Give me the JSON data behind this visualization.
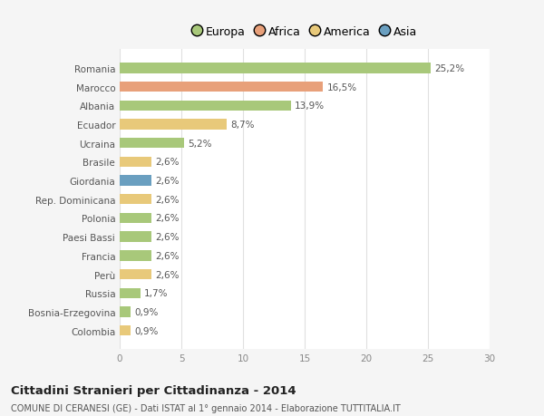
{
  "categories": [
    "Colombia",
    "Bosnia-Erzegovina",
    "Russia",
    "Perù",
    "Francia",
    "Paesi Bassi",
    "Polonia",
    "Rep. Dominicana",
    "Giordania",
    "Brasile",
    "Ucraina",
    "Ecuador",
    "Albania",
    "Marocco",
    "Romania"
  ],
  "values": [
    0.9,
    0.9,
    1.7,
    2.6,
    2.6,
    2.6,
    2.6,
    2.6,
    2.6,
    2.6,
    5.2,
    8.7,
    13.9,
    16.5,
    25.2
  ],
  "colors": [
    "#e8c97a",
    "#a8c87a",
    "#a8c87a",
    "#e8c97a",
    "#a8c87a",
    "#a8c87a",
    "#a8c87a",
    "#e8c97a",
    "#6a9fc0",
    "#e8c97a",
    "#a8c87a",
    "#e8c97a",
    "#a8c87a",
    "#e8a07a",
    "#a8c87a"
  ],
  "labels": [
    "0,9%",
    "0,9%",
    "1,7%",
    "2,6%",
    "2,6%",
    "2,6%",
    "2,6%",
    "2,6%",
    "2,6%",
    "2,6%",
    "5,2%",
    "8,7%",
    "13,9%",
    "16,5%",
    "25,2%"
  ],
  "legend_labels": [
    "Europa",
    "Africa",
    "America",
    "Asia"
  ],
  "legend_colors": [
    "#a8c87a",
    "#e8a07a",
    "#e8c97a",
    "#6a9fc0"
  ],
  "title": "Cittadini Stranieri per Cittadinanza - 2014",
  "subtitle": "COMUNE DI CERANESI (GE) - Dati ISTAT al 1° gennaio 2014 - Elaborazione TUTTITALIA.IT",
  "xlim": [
    0,
    30
  ],
  "xticks": [
    0,
    5,
    10,
    15,
    20,
    25,
    30
  ],
  "background_color": "#f5f5f5",
  "bar_background": "#ffffff",
  "grid_color": "#e0e0e0"
}
